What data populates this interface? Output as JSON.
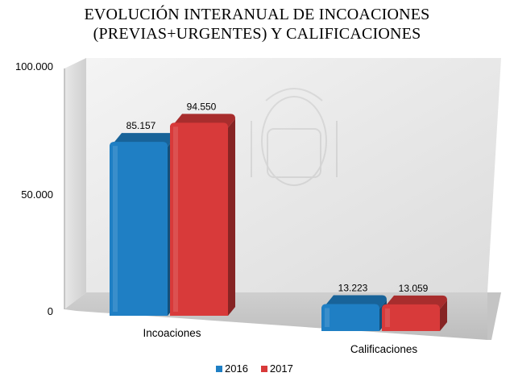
{
  "chart_data": {
    "type": "bar",
    "title_line1": "EVOLUCIÓN INTERANUAL DE INCOACIONES",
    "title_line2": "(PREVIAS+URGENTES) Y CALIFICACIONES",
    "categories": [
      "Incoaciones",
      "Calificaciones"
    ],
    "series": [
      {
        "name": "2016",
        "values": [
          85157,
          13223
        ],
        "labels": [
          "85.157",
          "13.223"
        ],
        "color": "#1f7fc4"
      },
      {
        "name": "2017",
        "values": [
          94550,
          13059
        ],
        "labels": [
          "94.550",
          "13.059"
        ],
        "color": "#d83a3a"
      }
    ],
    "yticks": [
      "100.000",
      "50.000",
      "0"
    ],
    "ylim": [
      0,
      100000
    ],
    "grid": false,
    "legend_position": "bottom"
  }
}
